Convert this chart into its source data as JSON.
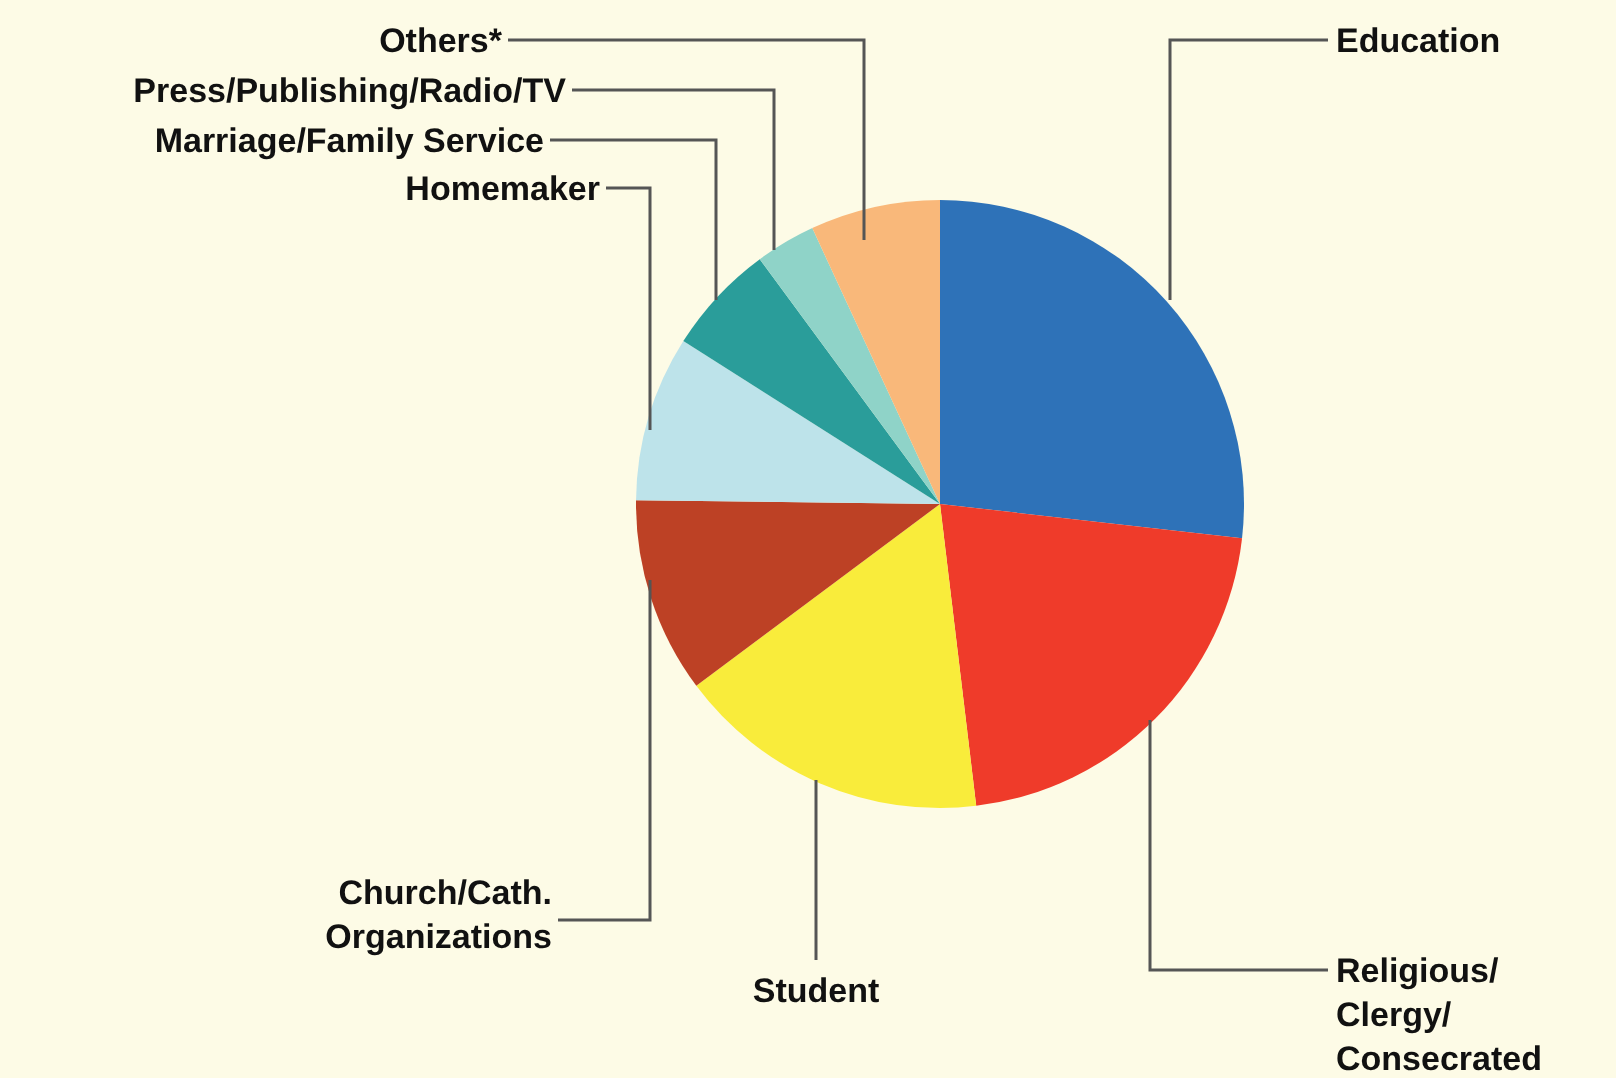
{
  "chart_data": {
    "type": "pie",
    "categories": [
      "Education",
      "Religious/ Clergy/ Consecrated",
      "Student",
      "Church/Cath. Organizations",
      "Homemaker",
      "Marriage/Family Service",
      "Press/Publishing/Radio/TV",
      "Others*"
    ],
    "values": [
      26.8,
      21.3,
      16.7,
      10.4,
      8.8,
      5.9,
      3.2,
      6.9
    ],
    "colors": [
      "#2e72b8",
      "#ef3b2a",
      "#f9ec3b",
      "#bd4125",
      "#bde3ea",
      "#2a9d9a",
      "#8fd3c8",
      "#f9b87a"
    ]
  }
}
